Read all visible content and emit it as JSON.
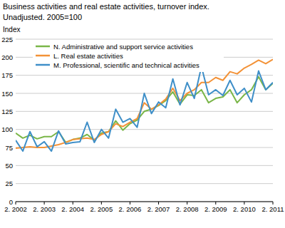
{
  "chart_data": {
    "type": "line",
    "title": "Business activities and real estate activities, turnover index.",
    "subtitle": "Unadjusted. 2005=100",
    "y_label": "Index",
    "categories": [
      "2. 2002",
      null,
      null,
      null,
      "2. 2003",
      null,
      null,
      null,
      "2. 2004",
      null,
      null,
      null,
      "2. 2005",
      null,
      null,
      null,
      "2. 2006",
      null,
      null,
      null,
      "2. 2007",
      null,
      null,
      null,
      "2. 2008",
      null,
      null,
      null,
      "2. 2009",
      null,
      null,
      null,
      "2. 2010",
      null,
      null,
      null,
      "2. 2011"
    ],
    "series": [
      {
        "name": "N. Administrative and support service activities",
        "color": "#7ab648",
        "values": [
          95,
          88,
          92,
          87,
          90,
          90,
          97,
          82,
          86,
          88,
          93,
          85,
          95,
          97,
          112,
          99,
          108,
          113,
          125,
          128,
          133,
          140,
          152,
          135,
          148,
          147,
          155,
          137,
          143,
          145,
          155,
          137,
          148,
          155,
          173,
          155,
          164
        ]
      },
      {
        "name": "L. Real estate activities",
        "color": "#f39237",
        "values": [
          74,
          75,
          76,
          75,
          75,
          77,
          79,
          82,
          86,
          87,
          88,
          86,
          93,
          97,
          108,
          104,
          110,
          115,
          137,
          128,
          134,
          142,
          157,
          140,
          150,
          155,
          165,
          165,
          172,
          168,
          180,
          177,
          185,
          190,
          196,
          191,
          197
        ]
      },
      {
        "name": "M. Professional, scientific and technical activities",
        "color": "#3f8fc8",
        "values": [
          85,
          70,
          97,
          76,
          83,
          70,
          98,
          80,
          82,
          83,
          110,
          82,
          100,
          88,
          128,
          110,
          115,
          103,
          150,
          122,
          138,
          130,
          170,
          134,
          165,
          143,
          187,
          148,
          155,
          147,
          168,
          148,
          157,
          138,
          181,
          155,
          165
        ]
      }
    ],
    "ylim": [
      0,
      225
    ],
    "yticks": [
      0,
      25,
      50,
      75,
      100,
      125,
      150,
      175,
      200,
      225
    ],
    "grid": true,
    "legend": "top-left"
  }
}
